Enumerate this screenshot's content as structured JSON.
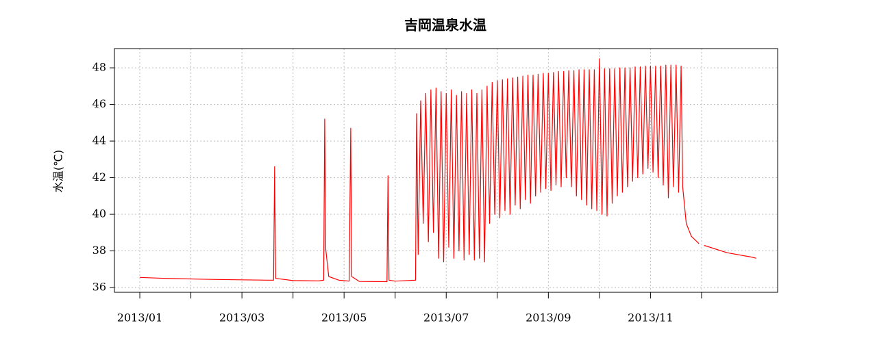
{
  "chart_data": {
    "type": "line",
    "title": "吉岡温泉水温",
    "y_label": "水温(℃)",
    "x": [
      1.0,
      1.5,
      2.0,
      2.5,
      3.0,
      3.5,
      3.62,
      3.64,
      3.66,
      4.0,
      4.5,
      4.6,
      4.62,
      4.64,
      4.7,
      4.9,
      5.1,
      5.13,
      5.15,
      5.3,
      5.84,
      5.86,
      5.88,
      6.0,
      6.4,
      6.42,
      6.45,
      6.5,
      6.55,
      6.6,
      6.65,
      6.7,
      6.75,
      6.8,
      6.85,
      6.9,
      6.95,
      7.0,
      7.05,
      7.1,
      7.15,
      7.2,
      7.25,
      7.3,
      7.35,
      7.4,
      7.45,
      7.5,
      7.55,
      7.6,
      7.65,
      7.7,
      7.75,
      7.8,
      7.85,
      7.9,
      7.95,
      8.0,
      8.05,
      8.1,
      8.15,
      8.2,
      8.25,
      8.3,
      8.35,
      8.4,
      8.45,
      8.5,
      8.55,
      8.6,
      8.65,
      8.7,
      8.75,
      8.8,
      8.85,
      8.9,
      8.95,
      9.0,
      9.05,
      9.1,
      9.15,
      9.2,
      9.25,
      9.3,
      9.35,
      9.4,
      9.45,
      9.5,
      9.55,
      9.6,
      9.65,
      9.7,
      9.75,
      9.8,
      9.85,
      9.9,
      9.95,
      10.0,
      10.05,
      10.1,
      10.15,
      10.2,
      10.25,
      10.3,
      10.35,
      10.4,
      10.45,
      10.5,
      10.55,
      10.6,
      10.65,
      10.7,
      10.75,
      10.8,
      10.85,
      10.9,
      10.95,
      11.0,
      11.05,
      11.1,
      11.15,
      11.2,
      11.25,
      11.3,
      11.35,
      11.4,
      11.45,
      11.5,
      11.55,
      11.6,
      11.63,
      11.7,
      11.8,
      11.95,
      12.0,
      12.05,
      12.5,
      13.0,
      13.07
    ],
    "series": [
      {
        "name": "水温",
        "color": "#ff0000",
        "values": [
          36.55,
          36.5,
          36.47,
          36.44,
          36.42,
          36.4,
          36.4,
          42.6,
          36.5,
          36.38,
          36.36,
          36.4,
          45.2,
          38.1,
          36.6,
          36.4,
          36.35,
          44.7,
          36.6,
          36.33,
          36.32,
          42.1,
          36.4,
          36.35,
          36.4,
          45.5,
          37.8,
          46.2,
          39.5,
          46.6,
          38.5,
          46.8,
          39.0,
          46.9,
          37.6,
          46.7,
          37.4,
          46.6,
          38.2,
          46.8,
          37.6,
          46.5,
          38.0,
          46.7,
          37.5,
          46.6,
          37.8,
          46.8,
          37.5,
          46.6,
          37.6,
          46.8,
          37.4,
          47.0,
          39.5,
          47.2,
          40.0,
          47.3,
          39.8,
          47.35,
          40.2,
          47.4,
          40.0,
          47.45,
          40.5,
          47.5,
          40.3,
          47.55,
          40.8,
          47.6,
          40.6,
          47.6,
          41.0,
          47.65,
          41.2,
          47.7,
          41.4,
          47.7,
          41.3,
          47.75,
          41.6,
          47.8,
          41.5,
          47.8,
          42.0,
          47.85,
          41.5,
          47.85,
          41.0,
          47.9,
          40.8,
          47.9,
          40.5,
          47.9,
          40.3,
          47.9,
          40.2,
          48.5,
          40.0,
          47.95,
          39.9,
          47.95,
          40.6,
          47.95,
          41.0,
          48.0,
          41.2,
          48.0,
          41.5,
          48.0,
          41.8,
          48.05,
          42.0,
          48.05,
          42.2,
          48.1,
          42.5,
          48.1,
          42.3,
          48.1,
          42.0,
          48.1,
          41.6,
          48.15,
          40.9,
          48.15,
          41.5,
          48.15,
          41.2,
          48.1,
          41.5,
          39.5,
          38.8,
          38.4,
          null,
          38.3,
          37.9,
          37.65,
          37.6
        ]
      }
    ],
    "xlim": [
      0.503,
      13.49
    ],
    "xticks": [
      {
        "value": 1,
        "label": "2013/01"
      },
      {
        "value": 2,
        "label": null
      },
      {
        "value": 3,
        "label": "2013/03"
      },
      {
        "value": 4,
        "label": null
      },
      {
        "value": 5,
        "label": "2013/05"
      },
      {
        "value": 6,
        "label": null
      },
      {
        "value": 7,
        "label": "2013/07"
      },
      {
        "value": 8,
        "label": null
      },
      {
        "value": 9,
        "label": "2013/09"
      },
      {
        "value": 10,
        "label": null
      },
      {
        "value": 11,
        "label": "2013/11"
      },
      {
        "value": 12,
        "label": null
      }
    ],
    "ylim": [
      35.74,
      49.05
    ],
    "yticks": [
      36,
      38,
      40,
      42,
      44,
      46,
      48
    ],
    "grid": true
  }
}
